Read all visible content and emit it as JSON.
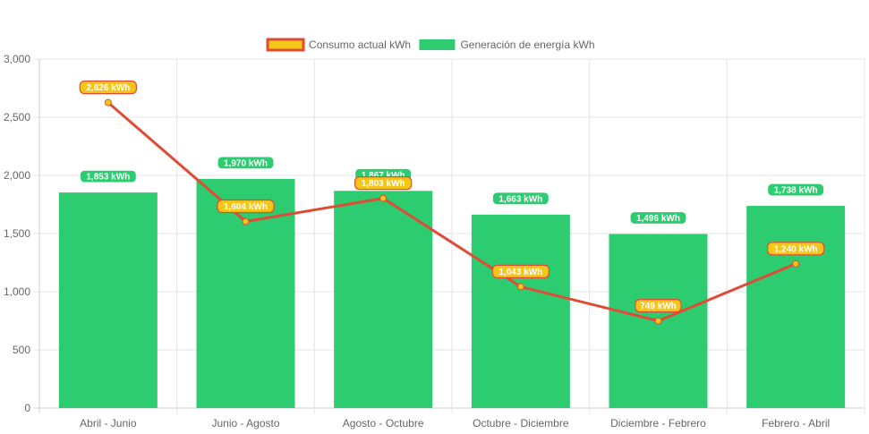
{
  "chart_data": {
    "type": "bar",
    "categories": [
      "Abril - Junio",
      "Junio - Agosto",
      "Agosto - Octubre",
      "Octubre - Diciembre",
      "Diciembre - Febrero",
      "Febrero - Abril"
    ],
    "series": [
      {
        "name": "Consumo actual kWh",
        "type": "line",
        "values": [
          2626,
          1604,
          1803,
          1043,
          749,
          1240
        ],
        "labels": [
          "2,626 kWh",
          "1,604 kWh",
          "1,803 kWh",
          "1,043 kWh",
          "749 kWh",
          "1,240 kWh"
        ],
        "line_color": "#e04b36",
        "fill_color": "#f5c518"
      },
      {
        "name": "Generación de energía kWh",
        "type": "bar",
        "values": [
          1853,
          1970,
          1867,
          1663,
          1496,
          1738
        ],
        "labels": [
          "1,853 kWh",
          "1,970 kWh",
          "1,867 kWh",
          "1,663 kWh",
          "1,496 kWh",
          "1,738 kWh"
        ],
        "color": "#2ecc71"
      }
    ],
    "yticks": [
      "0",
      "500",
      "1,000",
      "1,500",
      "2,000",
      "2,500",
      "3,000"
    ],
    "ylim": [
      0,
      3000
    ],
    "grid": true,
    "legend_position": "top"
  }
}
